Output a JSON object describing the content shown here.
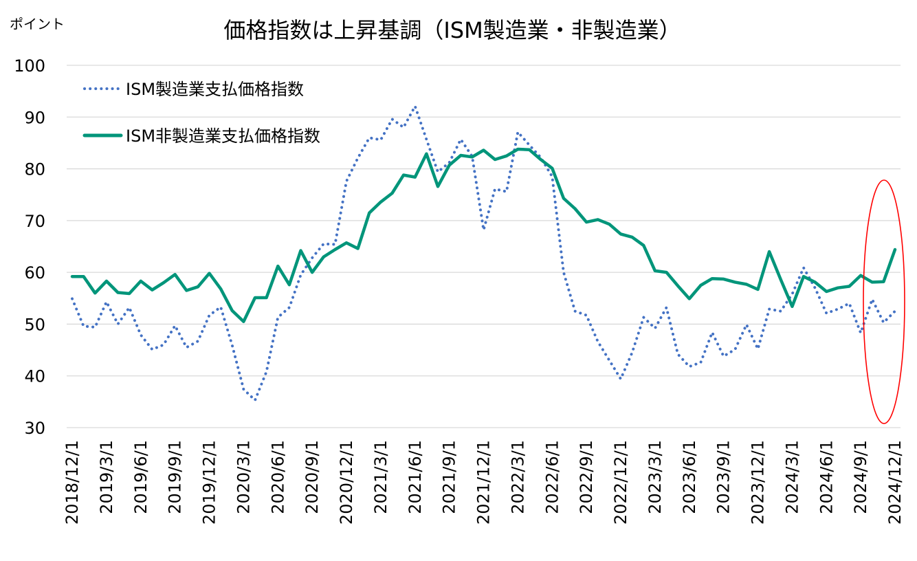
{
  "chart_data": {
    "type": "line",
    "title": "価格指数は上昇基調（ISM製造業・非製造業）",
    "ylabel": "ポイント",
    "xlabel": "",
    "ylim": [
      30,
      100
    ],
    "yticks": [
      "30",
      "40",
      "50",
      "60",
      "70",
      "80",
      "90",
      "100"
    ],
    "grid": "horizontal",
    "legend_position": "top-left",
    "x": [
      "2018/12/1",
      "2019/1/1",
      "2019/2/1",
      "2019/3/1",
      "2019/4/1",
      "2019/5/1",
      "2019/6/1",
      "2019/7/1",
      "2019/8/1",
      "2019/9/1",
      "2019/10/1",
      "2019/11/1",
      "2019/12/1",
      "2020/1/1",
      "2020/2/1",
      "2020/3/1",
      "2020/4/1",
      "2020/5/1",
      "2020/6/1",
      "2020/7/1",
      "2020/8/1",
      "2020/9/1",
      "2020/10/1",
      "2020/11/1",
      "2020/12/1",
      "2021/1/1",
      "2021/2/1",
      "2021/3/1",
      "2021/4/1",
      "2021/5/1",
      "2021/6/1",
      "2021/7/1",
      "2021/8/1",
      "2021/9/1",
      "2021/10/1",
      "2021/11/1",
      "2021/12/1",
      "2022/1/1",
      "2022/2/1",
      "2022/3/1",
      "2022/4/1",
      "2022/5/1",
      "2022/6/1",
      "2022/7/1",
      "2022/8/1",
      "2022/9/1",
      "2022/10/1",
      "2022/11/1",
      "2022/12/1",
      "2023/1/1",
      "2023/2/1",
      "2023/3/1",
      "2023/4/1",
      "2023/5/1",
      "2023/6/1",
      "2023/7/1",
      "2023/8/1",
      "2023/9/1",
      "2023/10/1",
      "2023/11/1",
      "2023/12/1",
      "2024/1/1",
      "2024/2/1",
      "2024/3/1",
      "2024/4/1",
      "2024/5/1",
      "2024/6/1",
      "2024/7/1",
      "2024/8/1",
      "2024/9/1",
      "2024/10/1",
      "2024/11/1",
      "2024/12/1"
    ],
    "xtick_labels": [
      "2018/12/1",
      "2019/3/1",
      "2019/6/1",
      "2019/9/1",
      "2019/12/1",
      "2020/3/1",
      "2020/6/1",
      "2020/9/1",
      "2020/12/1",
      "2021/3/1",
      "2021/6/1",
      "2021/9/1",
      "2021/12/1",
      "2022/3/1",
      "2022/6/1",
      "2022/9/1",
      "2022/12/1",
      "2023/3/1",
      "2023/6/1",
      "2023/9/1",
      "2023/12/1",
      "2024/3/1",
      "2024/6/1",
      "2024/9/1",
      "2024/12/1"
    ],
    "series": [
      {
        "name": "ISM製造業支払価格指数",
        "style": "dotted",
        "color": "#4472C4",
        "values": [
          54.9,
          49.6,
          49.4,
          54.3,
          50.0,
          53.2,
          47.9,
          45.1,
          46.0,
          49.7,
          45.5,
          46.7,
          51.7,
          53.3,
          45.9,
          37.4,
          35.3,
          40.8,
          51.3,
          53.2,
          59.5,
          62.8,
          65.5,
          65.4,
          77.6,
          82.1,
          86.0,
          85.6,
          89.6,
          88.0,
          92.1,
          85.7,
          79.4,
          81.2,
          85.7,
          82.4,
          68.2,
          76.1,
          75.6,
          87.1,
          84.6,
          82.2,
          78.5,
          60.0,
          52.5,
          51.7,
          46.6,
          43.0,
          39.4,
          44.5,
          51.3,
          49.2,
          53.2,
          44.2,
          41.8,
          42.6,
          48.4,
          43.8,
          45.1,
          49.9,
          45.2,
          52.9,
          52.5,
          55.8,
          60.9,
          57.0,
          52.1,
          52.9,
          54.0,
          48.3,
          54.8,
          50.3,
          52.5
        ]
      },
      {
        "name": "ISM非製造業支払価格指数",
        "style": "solid",
        "color": "#00957A",
        "values": [
          59.2,
          59.2,
          56.0,
          58.3,
          56.1,
          55.9,
          58.3,
          56.6,
          58.0,
          59.6,
          56.5,
          57.2,
          59.8,
          56.8,
          52.6,
          50.5,
          55.1,
          55.1,
          61.2,
          57.6,
          64.2,
          60.0,
          63.0,
          64.4,
          65.7,
          64.6,
          71.5,
          73.6,
          75.3,
          78.8,
          78.4,
          82.9,
          76.6,
          80.7,
          82.6,
          82.3,
          83.6,
          81.8,
          82.5,
          83.8,
          83.7,
          81.8,
          80.1,
          74.3,
          72.3,
          69.7,
          70.2,
          69.3,
          67.4,
          66.8,
          65.2,
          60.3,
          60.0,
          57.4,
          54.9,
          57.5,
          58.8,
          58.7,
          58.1,
          57.7,
          56.7,
          64.0,
          58.6,
          53.4,
          59.2,
          58.1,
          56.3,
          57.0,
          57.3,
          59.4,
          58.1,
          58.2,
          64.4
        ]
      }
    ],
    "annotations": [
      {
        "type": "ellipse",
        "target": "2024/9/1–2024/12/1",
        "color": "#FF0000"
      }
    ]
  }
}
